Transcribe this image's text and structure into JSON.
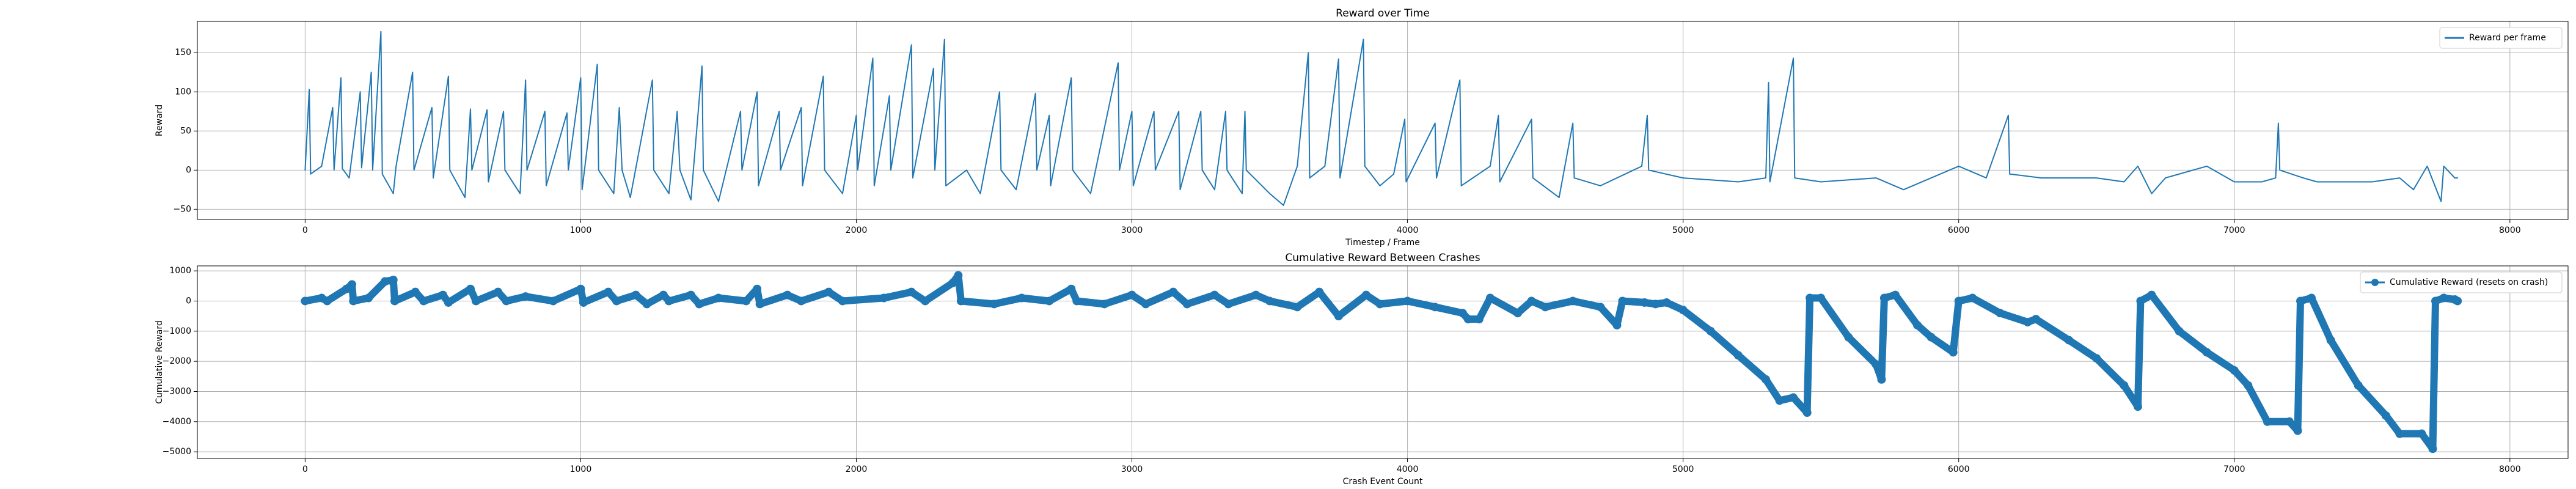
{
  "chart_data": [
    {
      "type": "line",
      "title": "Reward over Time",
      "xlabel": "Timestep / Frame",
      "ylabel": "Reward",
      "x": [
        0,
        15,
        20,
        60,
        100,
        105,
        130,
        135,
        160,
        200,
        205,
        240,
        245,
        275,
        280,
        320,
        330,
        390,
        395,
        460,
        465,
        520,
        525,
        580,
        600,
        605,
        660,
        665,
        720,
        725,
        780,
        800,
        805,
        870,
        875,
        950,
        955,
        1000,
        1005,
        1060,
        1065,
        1120,
        1140,
        1150,
        1180,
        1260,
        1265,
        1320,
        1350,
        1360,
        1400,
        1440,
        1445,
        1500,
        1580,
        1585,
        1640,
        1645,
        1720,
        1725,
        1800,
        1805,
        1880,
        1885,
        1950,
        2000,
        2005,
        2060,
        2065,
        2120,
        2125,
        2200,
        2205,
        2280,
        2285,
        2320,
        2325,
        2400,
        2450,
        2520,
        2525,
        2580,
        2650,
        2655,
        2700,
        2705,
        2780,
        2785,
        2850,
        2950,
        2955,
        3000,
        3005,
        3080,
        3085,
        3170,
        3175,
        3250,
        3255,
        3300,
        3340,
        3345,
        3400,
        3410,
        3415,
        3500,
        3550,
        3600,
        3640,
        3645,
        3700,
        3750,
        3755,
        3840,
        3845,
        3900,
        3950,
        3990,
        3995,
        4100,
        4105,
        4190,
        4195,
        4300,
        4330,
        4335,
        4450,
        4455,
        4550,
        4600,
        4605,
        4700,
        4850,
        4870,
        4875,
        5000,
        5200,
        5300,
        5310,
        5315,
        5400,
        5405,
        5500,
        5700,
        5800,
        5900,
        6000,
        6100,
        6180,
        6185,
        6300,
        6500,
        6600,
        6650,
        6700,
        6750,
        6900,
        7000,
        7100,
        7150,
        7160,
        7165,
        7250,
        7300,
        7500,
        7600,
        7650,
        7700,
        7750,
        7760,
        7800,
        7810
      ],
      "series": [
        {
          "name": "Reward per frame",
          "color": "#1f77b4",
          "values": [
            0,
            103,
            -5,
            5,
            80,
            0,
            118,
            2,
            -10,
            100,
            3,
            125,
            0,
            177,
            -5,
            -30,
            5,
            125,
            0,
            80,
            -10,
            120,
            0,
            -35,
            78,
            0,
            77,
            -15,
            75,
            0,
            -30,
            115,
            0,
            75,
            -20,
            73,
            0,
            118,
            -25,
            135,
            0,
            -30,
            80,
            0,
            -35,
            115,
            0,
            -30,
            75,
            0,
            -38,
            133,
            0,
            -40,
            75,
            0,
            100,
            -20,
            75,
            0,
            80,
            -20,
            120,
            0,
            -30,
            70,
            0,
            143,
            -20,
            95,
            0,
            160,
            -10,
            130,
            0,
            167,
            -20,
            0,
            -30,
            100,
            0,
            -25,
            98,
            0,
            70,
            -20,
            118,
            0,
            -30,
            137,
            0,
            75,
            -20,
            75,
            0,
            75,
            -25,
            75,
            0,
            -25,
            75,
            0,
            -30,
            75,
            0,
            -30,
            -45,
            5,
            150,
            -10,
            5,
            142,
            -10,
            167,
            5,
            -20,
            -5,
            65,
            -15,
            60,
            -10,
            115,
            -20,
            5,
            70,
            -15,
            65,
            -10,
            -35,
            60,
            -10,
            -20,
            5,
            70,
            0,
            -10,
            -15,
            -10,
            112,
            -15,
            143,
            -10,
            -15,
            -10,
            -25,
            -10,
            5,
            -10,
            70,
            -5,
            -10,
            -10,
            -15,
            5,
            -30,
            -10,
            5,
            -15,
            -15,
            -10,
            60,
            0,
            -10,
            -15,
            -15,
            -10,
            -25,
            5,
            -40,
            5,
            -10,
            -10
          ]
        }
      ],
      "xlim": [
        -391,
        8211
      ],
      "xticks": [
        0,
        1000,
        2000,
        3000,
        4000,
        5000,
        6000,
        7000,
        8000
      ],
      "ylim": [
        -63,
        190
      ],
      "yticks": [
        {
          "value": -50,
          "label": "−50"
        },
        0,
        50,
        100,
        150
      ],
      "grid": true,
      "legend": "upper right"
    },
    {
      "type": "line-marker",
      "title": "Cumulative Reward Between Crashes",
      "xlabel": "Crash Event Count",
      "ylabel": "Cumulative Reward",
      "x": [
        0,
        60,
        80,
        150,
        170,
        175,
        230,
        290,
        320,
        325,
        400,
        430,
        500,
        520,
        600,
        620,
        700,
        730,
        800,
        900,
        1000,
        1010,
        1100,
        1130,
        1200,
        1240,
        1300,
        1320,
        1400,
        1430,
        1500,
        1600,
        1640,
        1650,
        1750,
        1800,
        1900,
        1950,
        2100,
        2200,
        2250,
        2350,
        2370,
        2380,
        2500,
        2600,
        2700,
        2780,
        2800,
        2900,
        3000,
        3050,
        3150,
        3200,
        3300,
        3350,
        3450,
        3500,
        3600,
        3680,
        3750,
        3850,
        3900,
        4000,
        4100,
        4200,
        4220,
        4260,
        4300,
        4400,
        4450,
        4500,
        4600,
        4700,
        4760,
        4780,
        4860,
        4900,
        4940,
        5000,
        5100,
        5200,
        5300,
        5350,
        5400,
        5450,
        5460,
        5500,
        5600,
        5700,
        5720,
        5730,
        5770,
        5850,
        5900,
        5980,
        6000,
        6050,
        6150,
        6250,
        6280,
        6400,
        6500,
        6600,
        6650,
        6660,
        6700,
        6800,
        6900,
        7000,
        7050,
        7120,
        7200,
        7230,
        7240,
        7280,
        7350,
        7450,
        7550,
        7600,
        7680,
        7720,
        7730,
        7760,
        7800,
        7810
      ],
      "series": [
        {
          "name": "Cumulative Reward (resets on crash)",
          "color": "#1f77b4",
          "values": [
            0,
            100,
            0,
            400,
            550,
            0,
            100,
            650,
            700,
            0,
            300,
            0,
            200,
            -50,
            400,
            0,
            300,
            0,
            150,
            0,
            400,
            -50,
            300,
            0,
            200,
            -100,
            200,
            0,
            200,
            -100,
            100,
            0,
            400,
            -100,
            200,
            0,
            300,
            0,
            100,
            300,
            0,
            600,
            850,
            0,
            -100,
            100,
            0,
            400,
            0,
            -100,
            200,
            -100,
            300,
            -100,
            200,
            -100,
            200,
            0,
            -200,
            300,
            -500,
            200,
            -100,
            0,
            -200,
            -400,
            -600,
            -600,
            100,
            -400,
            0,
            -200,
            0,
            -200,
            -800,
            0,
            -50,
            -100,
            -50,
            -300,
            -1000,
            -1800,
            -2600,
            -3300,
            -3200,
            -3700,
            100,
            100,
            -1200,
            -2100,
            -2600,
            100,
            200,
            -800,
            -1200,
            -1700,
            0,
            100,
            -400,
            -700,
            -600,
            -1300,
            -1900,
            -2800,
            -3500,
            0,
            200,
            -1000,
            -1700,
            -2300,
            -2800,
            -4000,
            -4000,
            -4300,
            0,
            100,
            -1300,
            -2800,
            -3800,
            -4400,
            -4400,
            -4900,
            0,
            100,
            50,
            0
          ]
        }
      ],
      "xlim": [
        -391,
        8211
      ],
      "xticks": [
        0,
        1000,
        2000,
        3000,
        4000,
        5000,
        6000,
        7000,
        8000
      ],
      "ylim": [
        -5220,
        1165
      ],
      "yticks": [
        {
          "value": -5000,
          "label": "−5000"
        },
        {
          "value": -4000,
          "label": "−4000"
        },
        {
          "value": -3000,
          "label": "−3000"
        },
        {
          "value": -2000,
          "label": "−2000"
        },
        {
          "value": -1000,
          "label": "−1000"
        },
        0,
        1000
      ],
      "grid": true,
      "legend": "upper right"
    }
  ]
}
